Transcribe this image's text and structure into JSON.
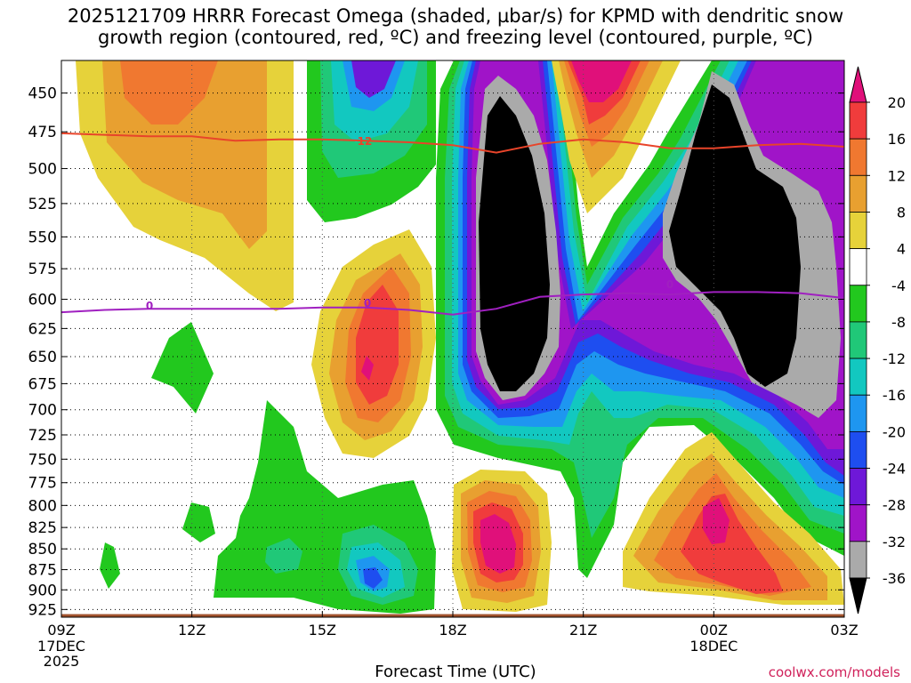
{
  "title": "2025121709 HRRR Forecast Omega (shaded, µbar/s) for KPMD with dendritic snow\ngrowth region (contoured, red, ºC) and freezing level (contoured, purple, ºC)",
  "credit": "coolwx.com/models",
  "chart_data": {
    "type": "heatmap",
    "title": "2025121709 HRRR Forecast Omega (shaded, µbar/s) for KPMD with dendritic snow growth region (contoured, red, ºC) and freezing level (contoured, purple, ºC)",
    "xlabel": "Forecast Time (UTC)",
    "ylabel": "",
    "x_ticks": [
      {
        "label": "09Z",
        "sub": [
          "17DEC",
          "2025"
        ],
        "hour": 0
      },
      {
        "label": "12Z",
        "sub": [],
        "hour": 3
      },
      {
        "label": "15Z",
        "sub": [],
        "hour": 6
      },
      {
        "label": "18Z",
        "sub": [],
        "hour": 9
      },
      {
        "label": "21Z",
        "sub": [],
        "hour": 12
      },
      {
        "label": "00Z",
        "sub": [
          "18DEC"
        ],
        "hour": 15
      },
      {
        "label": "03Z",
        "sub": [],
        "hour": 18
      }
    ],
    "xlim_hours": [
      0,
      18
    ],
    "y_ticks": [
      450,
      475,
      500,
      525,
      550,
      575,
      600,
      625,
      650,
      675,
      700,
      725,
      750,
      775,
      800,
      825,
      850,
      875,
      900,
      925
    ],
    "ylim_hpa": [
      430,
      935
    ],
    "y_scale": "log",
    "grid": true,
    "colorbar": {
      "labels": [
        20,
        16,
        12,
        8,
        4,
        -4,
        -8,
        -12,
        -16,
        -20,
        -24,
        -28,
        -32,
        -36
      ],
      "colors": [
        "#e0107a",
        "#f03c3c",
        "#f07830",
        "#e8a030",
        "#e6d23a",
        "#ffffff",
        "#22c81e",
        "#20c878",
        "#12c8c0",
        "#1e96f0",
        "#1e4ef0",
        "#6e18d8",
        "#a014c8",
        "#aaaaaa",
        "#000000"
      ]
    },
    "contour_labels": [
      {
        "text": "12",
        "color": "#e8442a"
      },
      {
        "text": "0",
        "color": "#a020c0"
      }
    ],
    "lines": [
      {
        "kind": "dendritic-growth-12C",
        "color": "#e8442a",
        "x": [
          0,
          1,
          2,
          3,
          4,
          5,
          6,
          7,
          8,
          9,
          10,
          11,
          12,
          13,
          14,
          15,
          16,
          17,
          18
        ],
        "hpa": [
          476,
          477,
          478,
          478,
          481,
          480,
          480,
          481,
          482,
          484,
          489,
          483,
          480,
          482,
          486,
          486,
          484,
          483,
          485
        ]
      },
      {
        "kind": "freezing-level-0C",
        "color": "#a020c0",
        "x": [
          0,
          1,
          2,
          3,
          4,
          5,
          6,
          7,
          8,
          9,
          10,
          11,
          12,
          13,
          14,
          15,
          16,
          17,
          18
        ],
        "hpa": [
          611,
          609,
          608,
          608,
          608,
          608,
          607,
          607,
          609,
          613,
          608,
          598,
          596,
          595,
          596,
          594,
          594,
          595,
          599
        ]
      }
    ],
    "terrain": {
      "color": "#a0522d",
      "hpa_top": 931
    }
  }
}
